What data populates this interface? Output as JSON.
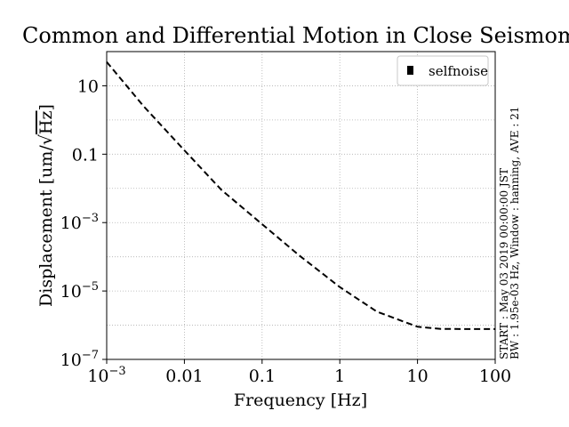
{
  "chart_data": {
    "type": "line",
    "title": "Common and Differential Motion in Close Seismometers",
    "xlabel": "Frequency [Hz]",
    "ylabel": "Displacement [um/√Hz]",
    "x_scale": "log",
    "y_scale": "log",
    "xlim": [
      0.001,
      100
    ],
    "ylim": [
      1e-07,
      100
    ],
    "x_ticks": [
      {
        "value": 0.001,
        "base": "10",
        "exp": "−3"
      },
      {
        "value": 0.01,
        "text": "0.01"
      },
      {
        "value": 0.1,
        "text": "0.1"
      },
      {
        "value": 1,
        "text": "1"
      },
      {
        "value": 10,
        "text": "10"
      },
      {
        "value": 100,
        "text": "100"
      }
    ],
    "y_ticks": [
      {
        "value": 1e-07,
        "base": "10",
        "exp": "−7"
      },
      {
        "value": 1e-05,
        "base": "10",
        "exp": "−5"
      },
      {
        "value": 0.001,
        "base": "10",
        "exp": "−3"
      },
      {
        "value": 0.1,
        "text": "0.1"
      },
      {
        "value": 10,
        "text": "10"
      }
    ],
    "grid": true,
    "legend_position": "top-right",
    "series": [
      {
        "name": "selfnoise",
        "color": "#000000",
        "line_style": "dashed",
        "x": [
          0.001,
          0.003,
          0.01,
          0.03,
          0.1,
          0.3,
          1,
          3,
          10,
          20,
          50,
          100
        ],
        "y": [
          50,
          2.5,
          0.13,
          0.009,
          0.0009,
          0.00011,
          1.3e-05,
          2.5e-06,
          9e-07,
          7.8e-07,
          7.7e-07,
          7.7e-07
        ]
      }
    ],
    "side_annotation": [
      "START : May 03 2019 00:00:00 JST",
      "BW : 1.95e-03 Hz, Window : hanning, AVE : 21"
    ]
  }
}
